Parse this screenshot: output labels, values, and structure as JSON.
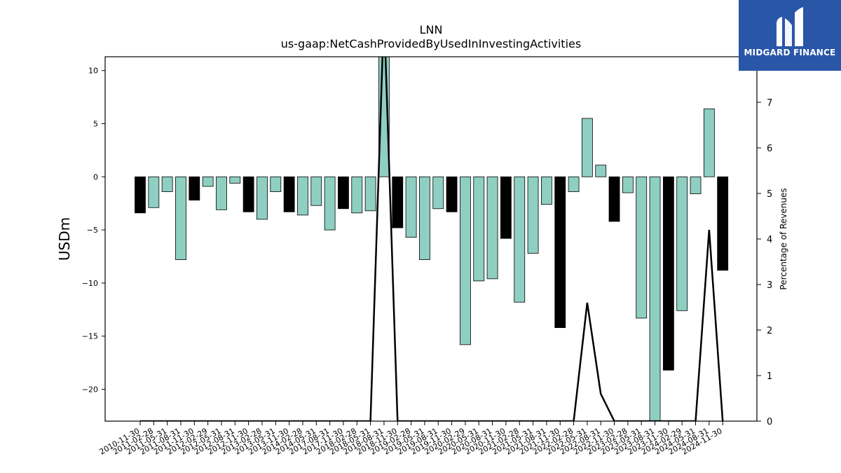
{
  "chart_data": {
    "type": "bar",
    "title": "LNN",
    "subtitle": "us-gaap:NetCashProvidedByUsedInInvestingActivities",
    "ylabel": "USDm",
    "y2label": "Percentage of Revenues",
    "ylim": [
      -23,
      11.3
    ],
    "y2lim": [
      0,
      8
    ],
    "yticks": [
      10,
      5,
      0,
      -5,
      -10,
      -15,
      -20
    ],
    "y2ticks": [
      0,
      1,
      2,
      3,
      4,
      5,
      6,
      7
    ],
    "colors": {
      "quarter": "#8ecfc2",
      "fiscal_year_end": "#000000",
      "line": "#000000"
    },
    "categories": [
      "2010-11-30",
      "2011-02-28",
      "2011-05-31",
      "2011-08-31",
      "2011-11-30",
      "2012-02-29",
      "2012-05-31",
      "2012-08-31",
      "2012-11-30",
      "2013-02-28",
      "2013-05-31",
      "2013-11-30",
      "2014-02-28",
      "2014-05-31",
      "2017-08-31",
      "2017-11-30",
      "2018-02-28",
      "2018-05-31",
      "2018-08-31",
      "2018-11-30",
      "2019-02-28",
      "2019-05-31",
      "2019-08-31",
      "2019-11-30",
      "2020-02-29",
      "2020-05-31",
      "2020-08-31",
      "2020-11-30",
      "2021-02-28",
      "2021-05-31",
      "2021-08-31",
      "2021-11-30",
      "2022-02-28",
      "2022-05-31",
      "2022-08-31",
      "2022-11-30",
      "2023-02-28",
      "2023-05-31",
      "2023-08-31",
      "2023-11-30",
      "2024-02-29",
      "2024-05-31",
      "2024-08-31",
      "2024-11-30"
    ],
    "values": [
      -3.4,
      -2.9,
      -1.4,
      -7.8,
      -2.2,
      -0.9,
      -3.1,
      -0.6,
      -3.3,
      -4.0,
      -1.4,
      -3.3,
      -3.6,
      -2.7,
      -5.0,
      -3.0,
      -3.4,
      -3.2,
      11.3,
      -4.8,
      -5.7,
      -7.8,
      -3.0,
      -3.3,
      -15.8,
      -9.8,
      -9.6,
      -5.8,
      -11.8,
      -7.2,
      -2.6,
      -14.2,
      -1.4,
      5.5,
      1.1,
      -4.2,
      -1.5,
      -13.3,
      -23.0,
      -18.2,
      -12.6,
      -1.6,
      6.4,
      -8.8
    ],
    "fiscal_year_end": [
      true,
      false,
      false,
      false,
      true,
      false,
      false,
      false,
      true,
      false,
      false,
      true,
      false,
      false,
      false,
      true,
      false,
      false,
      false,
      true,
      false,
      false,
      false,
      true,
      false,
      false,
      false,
      true,
      false,
      false,
      false,
      true,
      false,
      false,
      false,
      true,
      false,
      false,
      false,
      true,
      false,
      false,
      false,
      true
    ],
    "pct_of_revenues": [
      0,
      0,
      0,
      0,
      0,
      0,
      0,
      0,
      0,
      0,
      0,
      0,
      0,
      0,
      0,
      0,
      0,
      0,
      9,
      0,
      0,
      0,
      0,
      0,
      0,
      0,
      0,
      0,
      0,
      0,
      0,
      0,
      0,
      2.6,
      0.6,
      0,
      0,
      0,
      0,
      0,
      0,
      0,
      4.2,
      0
    ]
  },
  "logo": {
    "text": "MIDGARD FINANCE",
    "icon": "midgard-logo-icon"
  }
}
